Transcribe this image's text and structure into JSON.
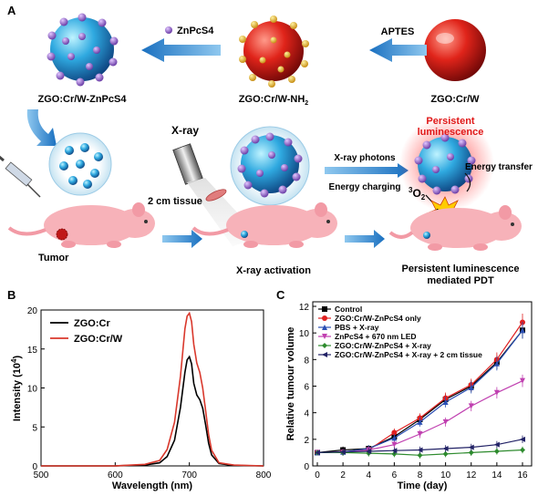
{
  "panels": {
    "a": "A",
    "b": "B",
    "c": "C"
  },
  "scheme": {
    "nanoparticles": {
      "bare": "ZGO:Cr/W",
      "amine": "ZGO:Cr/W-NH",
      "amine_sub": "2",
      "loaded": "ZGO:Cr/W-ZnPcS4"
    },
    "reagents": {
      "aptes": "APTES",
      "znpcs4": "ZnPcS4"
    },
    "labels": {
      "xray": "X-ray",
      "tissue": "2 cm tissue",
      "tumor": "Tumor",
      "activation": "X-ray activation",
      "photons": "X-ray photons",
      "charging": "Energy charging",
      "persistent_1": "Persistent",
      "persistent_2": "luminescence",
      "energy_transfer": "Energy transfer",
      "triplet_o2_sup": "3",
      "triplet_o2": "O",
      "triplet_o2_sub": "2",
      "singlet_o2_sup": "1",
      "singlet_o2": "O",
      "singlet_o2_sub": "2",
      "pdt_1": "Persistent luminescence",
      "pdt_2": "mediated PDT"
    }
  },
  "spectrum_chart": {
    "xlabel": "Wavelength (nm)",
    "ylabel": "Intensity (10",
    "ylabel_sup": "4",
    "ylabel_end": ")"
  },
  "tumor_chart": {
    "xlabel": "Time (day)",
    "ylabel": "Relative tumour volume"
  },
  "chart_data": [
    {
      "type": "line",
      "panel": "B",
      "xlabel": "Wavelength (nm)",
      "ylabel": "Intensity (10^4)",
      "xlim": [
        500,
        800
      ],
      "ylim": [
        0,
        20
      ],
      "xticks": [
        "500",
        "600",
        "700",
        "800"
      ],
      "yticks": [
        "0",
        "5",
        "10",
        "15",
        "20"
      ],
      "legend_position": "top-left",
      "series": [
        {
          "name": "ZGO:Cr",
          "color": "#000000",
          "x": [
            500,
            600,
            640,
            660,
            670,
            680,
            688,
            694,
            697,
            700,
            703,
            706,
            710,
            714,
            718,
            722,
            726,
            730,
            740,
            760,
            800
          ],
          "y": [
            0,
            0,
            0.1,
            0.4,
            1.2,
            3.3,
            7.5,
            12,
            13.6,
            14,
            13.1,
            10.6,
            9.1,
            8.5,
            7.4,
            5.2,
            2.9,
            1.4,
            0.3,
            0.05,
            0
          ]
        },
        {
          "name": "ZGO:Cr/W",
          "color": "#d9382c",
          "x": [
            500,
            600,
            640,
            660,
            670,
            680,
            688,
            694,
            697,
            700,
            703,
            706,
            710,
            714,
            718,
            722,
            726,
            730,
            740,
            760,
            800
          ],
          "y": [
            0,
            0,
            0.2,
            0.7,
            2.1,
            5.6,
            11.5,
            17.6,
            19.2,
            19.6,
            18.5,
            15.6,
            13.2,
            12,
            10,
            7,
            4,
            2,
            0.4,
            0.1,
            0
          ]
        }
      ]
    },
    {
      "type": "line",
      "panel": "C",
      "xlabel": "Time (day)",
      "ylabel": "Relative tumour volume",
      "xlim": [
        0,
        16
      ],
      "ylim": [
        0,
        12
      ],
      "xticks": [
        "0",
        "2",
        "4",
        "6",
        "8",
        "10",
        "12",
        "14",
        "16"
      ],
      "yticks": [
        "0",
        "2",
        "4",
        "6",
        "8",
        "10",
        "12"
      ],
      "legend_position": "top-left",
      "x": [
        0,
        2,
        4,
        6,
        8,
        10,
        12,
        14,
        16
      ],
      "series": [
        {
          "name": "Control",
          "color": "#000000",
          "marker": "square",
          "values": [
            1,
            1.2,
            1.3,
            2.2,
            3.5,
            5,
            6,
            7.8,
            10.2
          ]
        },
        {
          "name": "ZGO:Cr/W-ZnPcS4 only",
          "color": "#e02020",
          "marker": "circle",
          "values": [
            1,
            1.05,
            1.2,
            2.5,
            3.6,
            5.1,
            6.1,
            8,
            10.8
          ]
        },
        {
          "name": "PBS + X-ray",
          "color": "#2a4fb3",
          "marker": "triangle-up",
          "values": [
            1,
            1.05,
            1.3,
            2.1,
            3.3,
            4.8,
            5.9,
            7.7,
            10.2
          ]
        },
        {
          "name": "ZnPcS4 + 670 nm LED",
          "color": "#c040b0",
          "marker": "triangle-down",
          "values": [
            1,
            1,
            1.2,
            1.6,
            2.4,
            3.3,
            4.5,
            5.5,
            6.4
          ]
        },
        {
          "name": "ZGO:Cr/W-ZnPcS4 + X-ray",
          "color": "#2e8b2e",
          "marker": "diamond",
          "values": [
            1,
            1,
            0.95,
            0.9,
            0.8,
            0.9,
            1.0,
            1.1,
            1.2
          ]
        },
        {
          "name": "ZGO:Cr/W-ZnPcS4 + X-ray + 2 cm tissue",
          "color": "#222266",
          "marker": "triangle-left",
          "values": [
            1,
            1.05,
            1.1,
            1.15,
            1.2,
            1.3,
            1.4,
            1.6,
            2.0
          ]
        }
      ]
    }
  ]
}
